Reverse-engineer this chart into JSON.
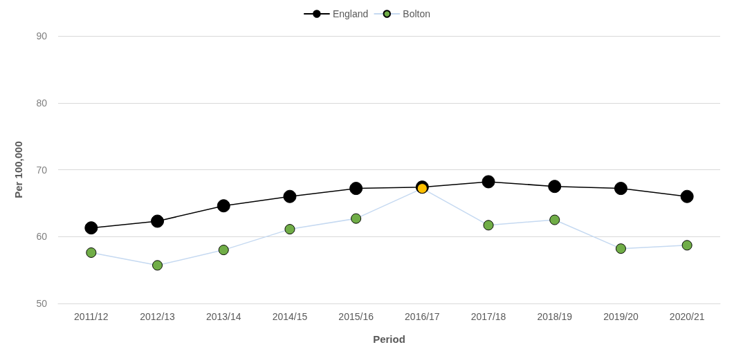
{
  "chart_data": {
    "type": "line",
    "xlabel": "Period",
    "ylabel": "Per 100,000",
    "categories": [
      "2011/12",
      "2012/13",
      "2013/14",
      "2014/15",
      "2015/16",
      "2016/17",
      "2017/18",
      "2018/19",
      "2019/20",
      "2020/21"
    ],
    "series": [
      {
        "name": "England",
        "color": "#000000",
        "values": [
          61.3,
          62.3,
          64.6,
          66.0,
          67.2,
          67.4,
          68.2,
          67.5,
          67.2,
          66.0
        ]
      },
      {
        "name": "Bolton",
        "color": "#c5d9f1",
        "colors": [
          "#70ad47",
          "#70ad47",
          "#70ad47",
          "#70ad47",
          "#70ad47",
          "#ffc000",
          "#70ad47",
          "#70ad47",
          "#70ad47",
          "#70ad47"
        ],
        "values": [
          57.6,
          55.7,
          58.0,
          61.1,
          62.7,
          67.2,
          61.7,
          62.5,
          58.2,
          58.7
        ]
      }
    ],
    "ylim": [
      50,
      90
    ],
    "yticks": [
      50,
      60,
      70,
      80,
      90
    ],
    "grid": "y",
    "legend": "top",
    "marker": "circle",
    "line_style": "solid"
  }
}
